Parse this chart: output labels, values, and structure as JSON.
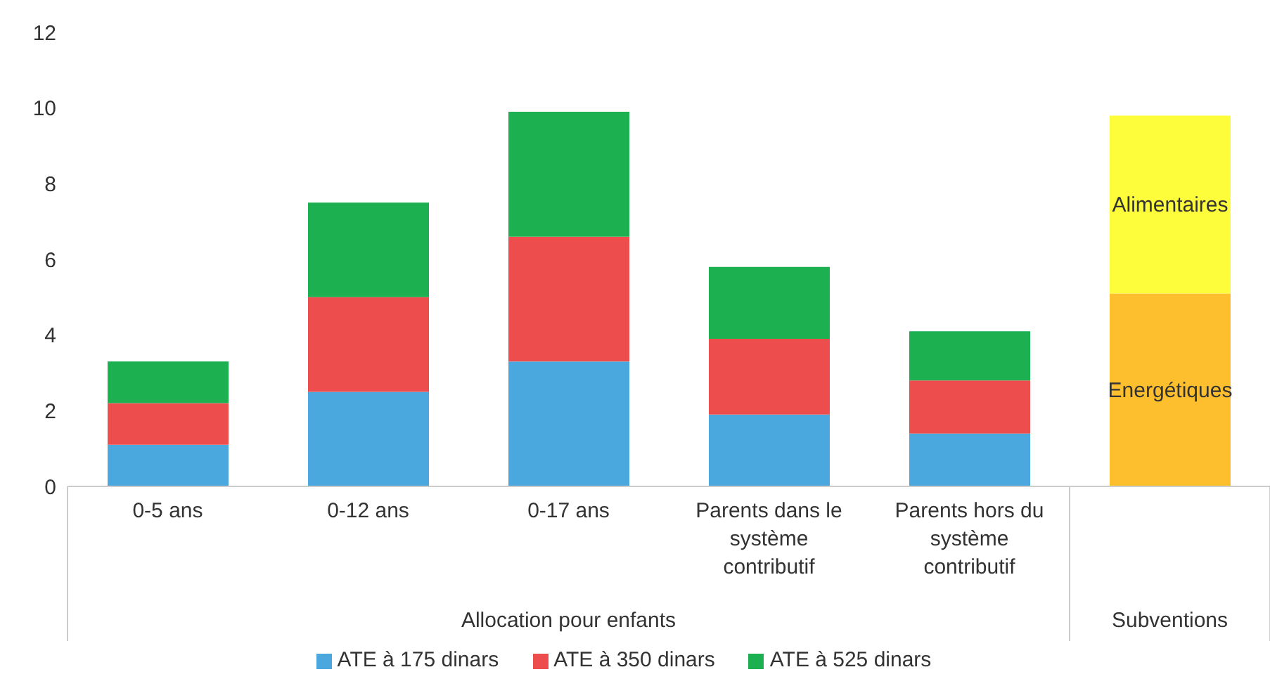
{
  "chart_data": {
    "type": "bar",
    "stacked": true,
    "categories": [
      "0-5 ans",
      "0-12 ans",
      "0-17 ans",
      "Parents dans le système contributif",
      "Parents hors du système contributif",
      null
    ],
    "series": [
      {
        "name": "ATE à 175 dinars",
        "color": "#4aa8de",
        "values": [
          1.1,
          2.5,
          3.3,
          1.9,
          1.4,
          null
        ]
      },
      {
        "name": "ATE à 350 dinars",
        "color": "#ee4d4d",
        "values": [
          1.1,
          2.5,
          3.3,
          2.0,
          1.4,
          null
        ]
      },
      {
        "name": "ATE à 525 dinars",
        "color": "#1db050",
        "values": [
          1.1,
          2.5,
          3.3,
          1.9,
          1.3,
          null
        ]
      },
      {
        "name": "Energétiques",
        "color": "#fdbf2d",
        "values": [
          null,
          null,
          null,
          null,
          null,
          5.1
        ]
      },
      {
        "name": "Alimentaires",
        "color": "#fdfd3c",
        "values": [
          null,
          null,
          null,
          null,
          null,
          4.7
        ]
      }
    ],
    "ylim": [
      0,
      12
    ],
    "yticks": [
      0,
      2,
      4,
      6,
      8,
      10,
      12
    ],
    "grid": false,
    "legend": "bottom",
    "annotations": [
      "Allocation pour enfants",
      "Subventions"
    ]
  }
}
